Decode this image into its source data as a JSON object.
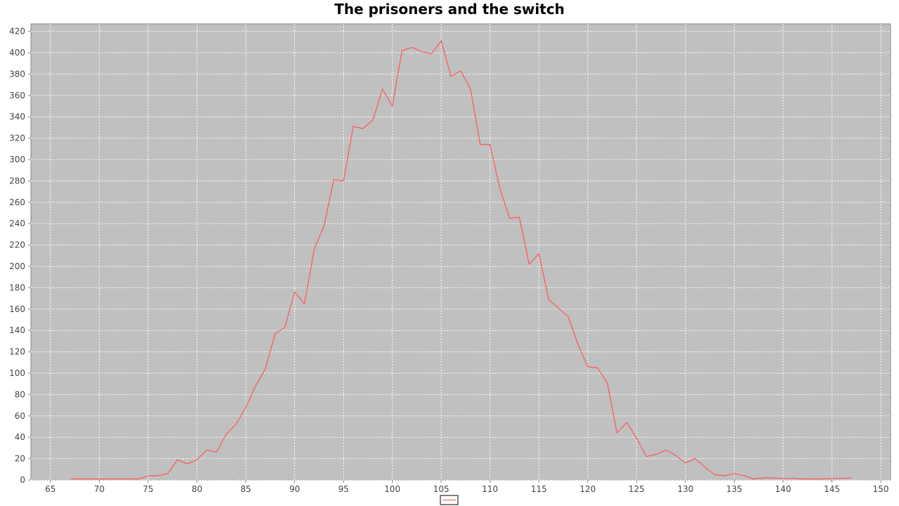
{
  "chart_data": {
    "type": "line",
    "title": "The prisoners and the switch",
    "xlabel": "",
    "ylabel": "",
    "xlim": [
      63,
      151
    ],
    "ylim": [
      0,
      427
    ],
    "x_ticks": [
      65,
      70,
      75,
      80,
      85,
      90,
      95,
      100,
      105,
      110,
      115,
      120,
      125,
      130,
      135,
      140,
      145,
      150
    ],
    "y_ticks": [
      0,
      20,
      40,
      60,
      80,
      100,
      120,
      140,
      160,
      180,
      200,
      220,
      240,
      260,
      280,
      300,
      320,
      340,
      360,
      380,
      400,
      420
    ],
    "grid": true,
    "plot_background": "#c0c0c0",
    "grid_color": "#ffffff",
    "legend": {
      "position": "bottom-center"
    },
    "series": [
      {
        "color": "#ff5555",
        "x": [
          67,
          68,
          69,
          70,
          71,
          72,
          73,
          74,
          75,
          76,
          77,
          78,
          79,
          80,
          81,
          82,
          83,
          84,
          85,
          86,
          87,
          88,
          89,
          90,
          91,
          92,
          93,
          94,
          95,
          96,
          97,
          98,
          99,
          100,
          101,
          102,
          103,
          104,
          105,
          106,
          107,
          108,
          109,
          110,
          111,
          112,
          113,
          114,
          115,
          116,
          117,
          118,
          119,
          120,
          121,
          122,
          123,
          124,
          125,
          126,
          127,
          128,
          129,
          130,
          131,
          132,
          133,
          134,
          135,
          136,
          137,
          138,
          139,
          140,
          141,
          142,
          143,
          144,
          145,
          146,
          147
        ],
        "y": [
          1,
          1,
          1,
          1,
          1,
          1,
          1,
          1,
          4,
          4,
          6,
          19,
          15,
          19,
          28,
          26,
          43,
          52,
          68,
          88,
          104,
          137,
          143,
          176,
          165,
          216,
          238,
          281,
          280,
          331,
          329,
          337,
          366,
          350,
          402,
          405,
          401,
          399,
          411,
          378,
          383,
          366,
          314,
          314,
          273,
          245,
          246,
          202,
          212,
          169,
          161,
          153,
          127,
          106,
          105,
          91,
          44,
          54,
          39,
          22,
          24,
          28,
          23,
          16,
          20,
          12,
          5,
          4,
          6,
          4,
          1,
          2,
          2,
          1.5,
          1.5,
          1,
          1,
          1,
          1.5,
          1.5,
          2
        ]
      }
    ]
  }
}
